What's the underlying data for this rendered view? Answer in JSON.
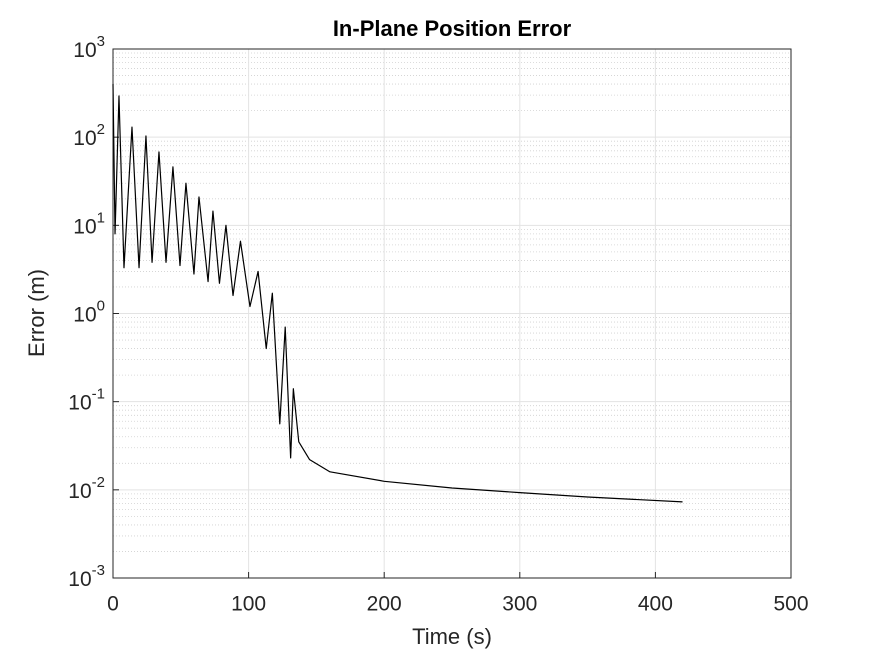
{
  "chart_data": {
    "type": "line",
    "title": "In-Plane Position Error",
    "xlabel": "Time (s)",
    "ylabel": "Error (m)",
    "log_y": true,
    "grid": true,
    "minor_grid_y": true,
    "xlim": [
      0,
      500
    ],
    "xticks": [
      0,
      100,
      200,
      300,
      400,
      500
    ],
    "ylim": [
      0.001,
      1000
    ],
    "yticks": [
      {
        "value": 0.001,
        "label": "10^-3"
      },
      {
        "value": 0.01,
        "label": "10^-2"
      },
      {
        "value": 0.1,
        "label": "10^-1"
      },
      {
        "value": 1,
        "label": "10^0"
      },
      {
        "value": 10,
        "label": "10^1"
      },
      {
        "value": 100,
        "label": "10^2"
      },
      {
        "value": 1000,
        "label": "10^3"
      }
    ],
    "series": [
      {
        "color": "#000000",
        "x": [
          0,
          1.5,
          4.4,
          8.1,
          14,
          19.2,
          24.3,
          28.8,
          33.9,
          39.1,
          44.2,
          49.4,
          53.8,
          59.7,
          63.4,
          70.1,
          73.7,
          78.5,
          83.3,
          88.5,
          94,
          101,
          107,
          113,
          117.5,
          123,
          127,
          131,
          133,
          137,
          145,
          160,
          200,
          250,
          300,
          350,
          420
        ],
        "values": [
          400,
          8,
          293,
          3.3,
          130,
          3.3,
          103,
          3.8,
          68,
          3.8,
          46,
          3.5,
          30,
          2.8,
          21,
          2.3,
          14.5,
          2.2,
          10,
          1.6,
          6.6,
          1.2,
          3,
          0.4,
          1.7,
          0.056,
          0.7,
          0.023,
          0.14,
          0.035,
          0.022,
          0.016,
          0.0125,
          0.0105,
          0.0093,
          0.0083,
          0.0073
        ]
      }
    ]
  }
}
